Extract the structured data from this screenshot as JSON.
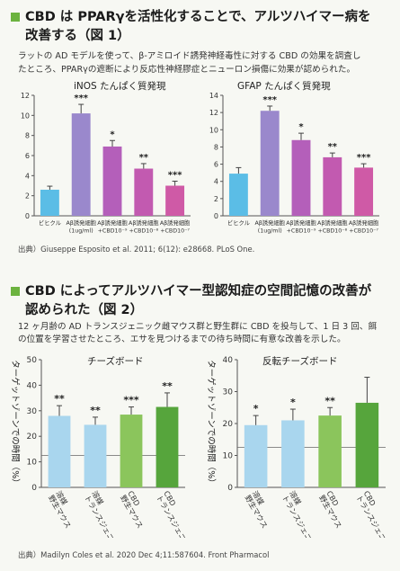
{
  "section1": {
    "heading_line1": "CBD は PPARγを活性化することで、アルツハイマー病を",
    "heading_line2": "改善する（図 1）",
    "intro_line1": "ラットの AD モデルを使って、β-アミロイド誘発神経毒性に対する CBD の効果を調査し",
    "intro_line2": "たところ、PPARγの遮断により反応性神経膠症とニューロン損傷に効果が認められた。",
    "source": "出典）Giuseppe Esposito et al. 2011; 6(12): e28668. PLoS One."
  },
  "section2": {
    "heading_line1": "CBD によってアルツハイマー型認知症の空間記憶の改善が",
    "heading_line2": "認められた（図 2）",
    "intro_line1": "12 ヶ月齢の AD トランスジェニック雌マウス群と野生群に CBD を投与して、1 日 3 回、餌",
    "intro_line2": "の位置を学習させたところ、エサを見つけるまでの待ち時間に有意な改善を示した。",
    "source": "出典）Madilyn Coles et al. 2020 Dec 4;11:587604. Front Pharmacol"
  },
  "colors": {
    "green": "#6cb33f",
    "vehicle_blue": "#5bbde6",
    "ab_purple": "#9a88cc",
    "cbd_violet": "#b45fba",
    "cbd_magenta": "#cf5aa6",
    "bar_lightblue": "#a9d6ee",
    "bar_lightgreen": "#8bc55c",
    "bar_darkgreen": "#56a53c"
  },
  "chart_data": [
    {
      "type": "bar",
      "title": "iNOS たんぱく質発現",
      "categories": [
        "ビヒクル",
        "Aβ誘発細胞\n(1ug/ml)",
        "Aβ誘発細胞\n+CBD10⁻⁹",
        "Aβ誘発細胞\n+CBD10⁻⁸",
        "Aβ誘発細胞\n+CBD10⁻⁷"
      ],
      "values": [
        2.6,
        10.2,
        6.9,
        4.7,
        3.0
      ],
      "errors": [
        0.35,
        0.9,
        0.6,
        0.5,
        0.45
      ],
      "significance": [
        "",
        "***",
        "*",
        "**",
        "***"
      ],
      "ylim": [
        0,
        12
      ],
      "yticks": [
        0,
        2,
        4,
        6,
        8,
        10,
        12
      ],
      "bar_colors": [
        "#5bbde6",
        "#9a88cc",
        "#b45fba",
        "#c25ab0",
        "#cf5aa6"
      ]
    },
    {
      "type": "bar",
      "title": "GFAP たんぱく質発現",
      "categories": [
        "ビヒクル",
        "Aβ誘発細胞\n(1ug/ml)",
        "Aβ誘発細胞\n+CBD10⁻⁹",
        "Aβ誘発細胞\n+CBD10⁻⁸",
        "Aβ誘発細胞\n+CBD10⁻⁷"
      ],
      "values": [
        4.9,
        12.2,
        8.8,
        6.8,
        5.6
      ],
      "errors": [
        0.7,
        0.55,
        0.8,
        0.5,
        0.45
      ],
      "significance": [
        "",
        "***",
        "*",
        "**",
        "***"
      ],
      "ylim": [
        0,
        14
      ],
      "yticks": [
        0,
        2,
        4,
        6,
        8,
        10,
        12,
        14
      ],
      "bar_colors": [
        "#5bbde6",
        "#9a88cc",
        "#b45fba",
        "#c25ab0",
        "#cf5aa6"
      ]
    },
    {
      "type": "bar",
      "title": "チーズボード",
      "ylabel": "ターゲットゾーンでの時間（%）",
      "categories": [
        "溶媒 野生マウス",
        "溶媒 トランスジェニック",
        "CBD 野生マウス",
        "CBD トランスジェニック"
      ],
      "values": [
        28,
        24.5,
        28.5,
        31.5
      ],
      "errors": [
        4,
        3,
        3,
        5.5
      ],
      "significance": [
        "**",
        "**",
        "***",
        "**"
      ],
      "ylim": [
        0,
        50
      ],
      "yticks": [
        0,
        10,
        20,
        30,
        40,
        50
      ],
      "reference_line": 12.5,
      "bar_colors": [
        "#a9d6ee",
        "#a9d6ee",
        "#8bc55c",
        "#56a53c"
      ]
    },
    {
      "type": "bar",
      "title": "反転チーズボード",
      "ylabel": "ターゲットゾーンでの時間（%）",
      "categories": [
        "溶媒 野生マウス",
        "溶媒 トランスジェニック",
        "CBD 野生マウス",
        "CBD トランスジェニック"
      ],
      "values": [
        19.5,
        21,
        22.5,
        26.5
      ],
      "errors": [
        3,
        3.5,
        2.5,
        8
      ],
      "significance": [
        "*",
        "*",
        "**",
        ""
      ],
      "ylim": [
        0,
        40
      ],
      "yticks": [
        0,
        10,
        20,
        30,
        40
      ],
      "reference_line": 12.5,
      "bar_colors": [
        "#a9d6ee",
        "#a9d6ee",
        "#8bc55c",
        "#56a53c"
      ]
    }
  ]
}
